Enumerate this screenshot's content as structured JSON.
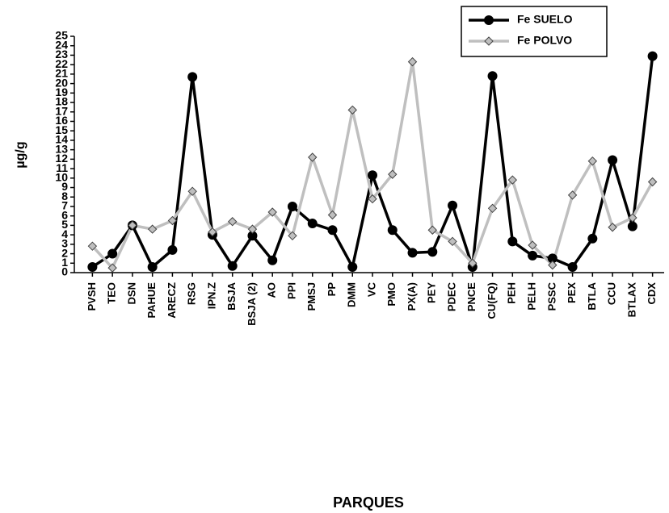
{
  "chart_data": {
    "type": "line",
    "x_label": "PARQUES",
    "y_label": "µg/g",
    "categories": [
      "PVSH",
      "TEO",
      "DSN",
      "PAHUE",
      "ARECZ",
      "RSG",
      "IPN.Z",
      "BSJA",
      "BSJA (2)",
      "AO",
      "PPI",
      "PMSJ",
      "PP",
      "DMM",
      "VC",
      "PMO",
      "PX(A)",
      "PEY",
      "PDEC",
      "PNCE",
      "CU(FQ)",
      "PEH",
      "PELH",
      "PSSC",
      "PEX",
      "BTLA",
      "CCU",
      "BTLAX",
      "CDX"
    ],
    "series": [
      {
        "name": "Fe SUELO",
        "color": "#000000",
        "marker": "circle",
        "values": [
          0.6,
          2.0,
          5.0,
          0.6,
          2.4,
          20.7,
          4.0,
          0.7,
          3.9,
          1.3,
          7.0,
          5.2,
          4.5,
          0.6,
          10.3,
          4.5,
          2.1,
          2.2,
          7.1,
          0.6,
          20.8,
          3.3,
          1.8,
          1.5,
          0.6,
          3.6,
          11.9,
          4.9,
          22.9
        ]
      },
      {
        "name": "Fe POLVO",
        "color": "#bfbfbf",
        "marker": "diamond",
        "values": [
          2.8,
          0.5,
          5.0,
          4.6,
          5.5,
          8.6,
          4.3,
          5.4,
          4.6,
          6.4,
          3.9,
          12.2,
          6.1,
          17.2,
          7.8,
          10.4,
          22.3,
          4.5,
          3.3,
          1.0,
          6.8,
          9.8,
          2.9,
          0.8,
          8.2,
          11.8,
          4.8,
          5.8,
          9.6
        ]
      }
    ],
    "ylim": [
      0,
      25
    ],
    "yticks": [
      0,
      1,
      2,
      3,
      4,
      5,
      6,
      7,
      8,
      9,
      10,
      11,
      12,
      13,
      14,
      15,
      16,
      17,
      18,
      19,
      20,
      21,
      22,
      23,
      24,
      25
    ]
  }
}
